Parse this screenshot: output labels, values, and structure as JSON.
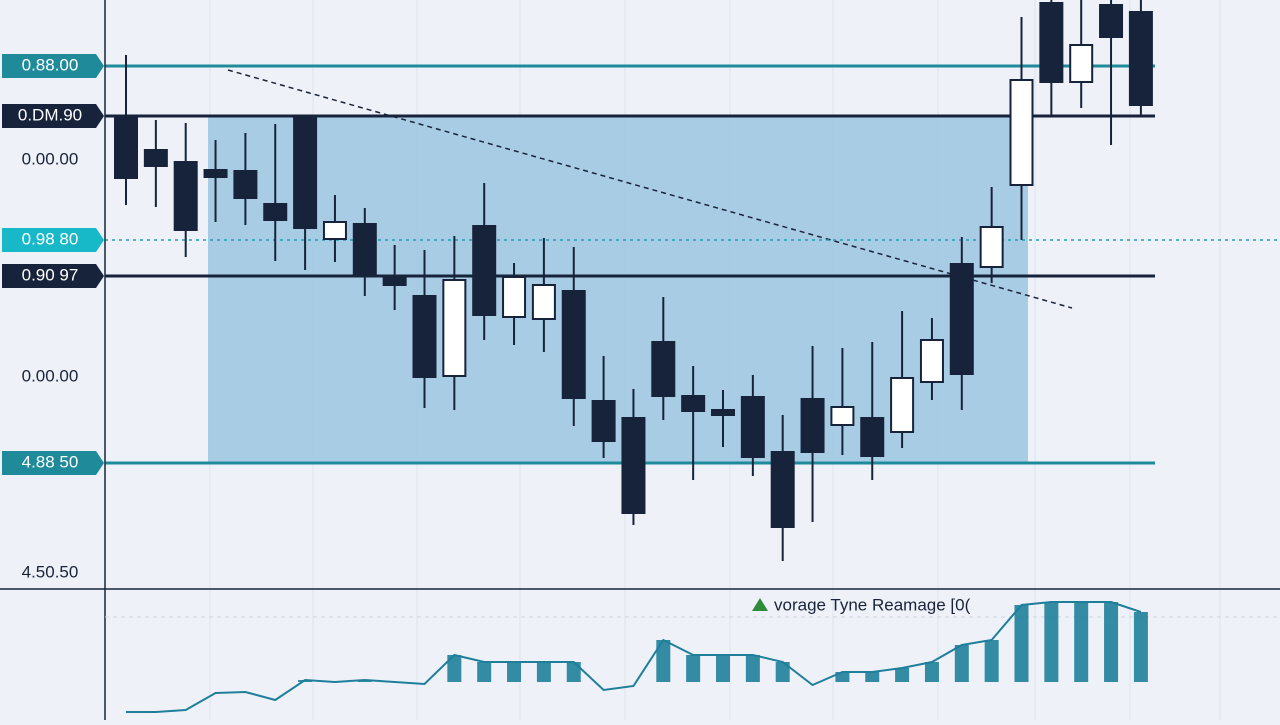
{
  "chart_data": {
    "type": "candlestick",
    "ylim": [
      0,
      588
    ],
    "yticks": [
      {
        "value": 522,
        "label": "0.88.00"
      },
      {
        "value": 472,
        "label": "0.DM.90"
      },
      {
        "value": 428,
        "label": "0.00.00"
      },
      {
        "value": 348,
        "label": "0.98 80"
      },
      {
        "value": 312,
        "label": "0.90 97"
      },
      {
        "value": 211,
        "label": "0.00.00"
      },
      {
        "value": 125,
        "label": "4.88 50"
      },
      {
        "value": 15,
        "label": "4.50.50"
      }
    ],
    "up_color": "#ffffff",
    "down_color": "#16233a",
    "series": [
      {
        "open": [
          471,
          438,
          426,
          418,
          417,
          384,
          471,
          349,
          364,
          312,
          292,
          212,
          362,
          271,
          269,
          297,
          187,
          170,
          246,
          192,
          178,
          191,
          136,
          189,
          163,
          170,
          156,
          206,
          324,
          321,
          403,
          585,
          506,
          583,
          576
        ],
        "high": [
          533,
          468,
          465,
          448,
          455,
          464,
          471,
          393,
          380,
          343,
          338,
          352,
          405,
          325,
          350,
          341,
          232,
          199,
          291,
          222,
          198,
          213,
          173,
          242,
          240,
          246,
          277,
          270,
          351,
          401,
          571,
          588,
          588,
          588,
          588
        ],
        "low": [
          383,
          381,
          331,
          366,
          363,
          327,
          318,
          326,
          292,
          278,
          180,
          178,
          248,
          243,
          236,
          162,
          130,
          63,
          168,
          108,
          141,
          112,
          27,
          66,
          133,
          108,
          140,
          188,
          178,
          305,
          348,
          471,
          480,
          443,
          472
        ],
        "close": [
          410,
          422,
          358,
          411,
          390,
          368,
          360,
          366,
          312,
          303,
          211,
          308,
          273,
          311,
          303,
          190,
          147,
          75,
          192,
          177,
          173,
          131,
          61,
          136,
          181,
          132,
          210,
          248,
          214,
          361,
          508,
          506,
          543,
          551,
          483
        ]
      }
    ],
    "indicator": {
      "name": "vorage Tyne Reamage [0(",
      "color": "#1f7f9a",
      "values": [
        8,
        8,
        10,
        27,
        28,
        20,
        40,
        38,
        40,
        38,
        36,
        65,
        58,
        58,
        58,
        58,
        30,
        34,
        80,
        65,
        65,
        65,
        58,
        35,
        48,
        48,
        52,
        58,
        75,
        80,
        115,
        118,
        118,
        118,
        108
      ]
    }
  }
}
